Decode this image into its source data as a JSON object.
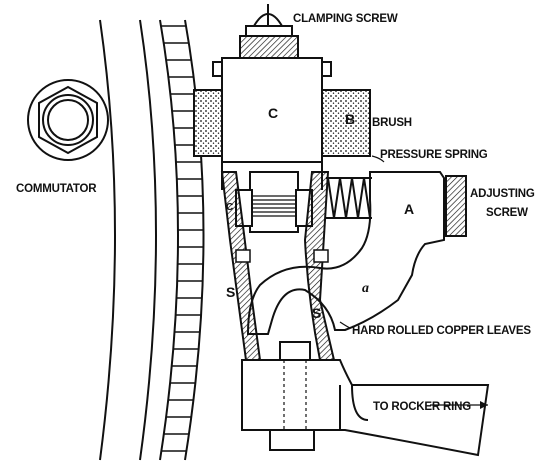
{
  "labels": {
    "clamping_screw": "CLAMPING SCREW",
    "brush": "BRUSH",
    "pressure_spring": "PRESSURE SPRING",
    "adjusting_screw_1": "ADJUSTING",
    "adjusting_screw_2": "SCREW",
    "commutator": "COMMUTATOR",
    "copper_leaves": "HARD ROLLED COPPER LEAVES",
    "rocker_ring": "TO ROCKER RING",
    "letter_c_top": "C",
    "letter_b": "B",
    "letter_c_small": "C",
    "letter_a": "A",
    "letter_a_small": "a",
    "letter_s_left": "S",
    "letter_s_right": "S"
  }
}
